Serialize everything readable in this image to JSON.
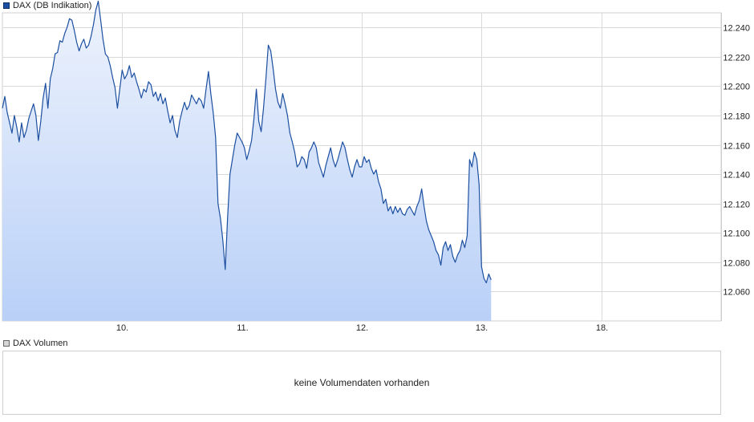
{
  "legend": {
    "price_label": "DAX (DB Indikation)",
    "volume_label": "DAX Volumen"
  },
  "volume": {
    "empty_message": "keine Volumendaten vorhanden"
  },
  "colors": {
    "line": "#1c4fa0",
    "area_top": "#eef3fd",
    "area_bottom": "#b9d0f7",
    "grid": "#d9d9d9",
    "frame": "#cfcfcf"
  },
  "chart_data": {
    "type": "area",
    "series": [
      {
        "name": "DAX (DB Indikation)"
      }
    ],
    "x_ticks": [
      "10.",
      "11.",
      "12.",
      "13.",
      "18."
    ],
    "y_ticks": [
      "12.060",
      "12.080",
      "12.100",
      "12.120",
      "12.140",
      "12.160",
      "12.180",
      "12.200",
      "12.220",
      "12.240"
    ],
    "ylim": [
      12040,
      12250
    ],
    "x_index_range": [
      0,
      6
    ],
    "grid": true,
    "legend_position": "top-left",
    "points": [
      [
        0.0,
        12185
      ],
      [
        0.02,
        12193
      ],
      [
        0.04,
        12182
      ],
      [
        0.06,
        12175
      ],
      [
        0.08,
        12168
      ],
      [
        0.1,
        12180
      ],
      [
        0.12,
        12172
      ],
      [
        0.14,
        12162
      ],
      [
        0.16,
        12175
      ],
      [
        0.18,
        12165
      ],
      [
        0.2,
        12170
      ],
      [
        0.22,
        12178
      ],
      [
        0.24,
        12183
      ],
      [
        0.26,
        12188
      ],
      [
        0.28,
        12180
      ],
      [
        0.3,
        12163
      ],
      [
        0.32,
        12176
      ],
      [
        0.34,
        12192
      ],
      [
        0.36,
        12202
      ],
      [
        0.38,
        12185
      ],
      [
        0.4,
        12205
      ],
      [
        0.42,
        12212
      ],
      [
        0.44,
        12222
      ],
      [
        0.46,
        12223
      ],
      [
        0.48,
        12231
      ],
      [
        0.5,
        12230
      ],
      [
        0.52,
        12236
      ],
      [
        0.54,
        12240
      ],
      [
        0.56,
        12246
      ],
      [
        0.58,
        12245
      ],
      [
        0.6,
        12238
      ],
      [
        0.62,
        12230
      ],
      [
        0.64,
        12224
      ],
      [
        0.66,
        12229
      ],
      [
        0.68,
        12232
      ],
      [
        0.7,
        12226
      ],
      [
        0.72,
        12228
      ],
      [
        0.74,
        12234
      ],
      [
        0.76,
        12242
      ],
      [
        0.78,
        12252
      ],
      [
        0.8,
        12258
      ],
      [
        0.82,
        12245
      ],
      [
        0.84,
        12232
      ],
      [
        0.86,
        12222
      ],
      [
        0.88,
        12220
      ],
      [
        0.9,
        12214
      ],
      [
        0.92,
        12206
      ],
      [
        0.94,
        12199
      ],
      [
        0.96,
        12185
      ],
      [
        0.98,
        12198
      ],
      [
        1.0,
        12211
      ],
      [
        1.02,
        12205
      ],
      [
        1.04,
        12208
      ],
      [
        1.06,
        12214
      ],
      [
        1.08,
        12206
      ],
      [
        1.1,
        12209
      ],
      [
        1.12,
        12203
      ],
      [
        1.14,
        12198
      ],
      [
        1.16,
        12192
      ],
      [
        1.18,
        12198
      ],
      [
        1.2,
        12196
      ],
      [
        1.22,
        12203
      ],
      [
        1.24,
        12201
      ],
      [
        1.26,
        12193
      ],
      [
        1.28,
        12196
      ],
      [
        1.3,
        12190
      ],
      [
        1.32,
        12195
      ],
      [
        1.34,
        12188
      ],
      [
        1.36,
        12192
      ],
      [
        1.38,
        12183
      ],
      [
        1.4,
        12175
      ],
      [
        1.42,
        12180
      ],
      [
        1.44,
        12170
      ],
      [
        1.46,
        12165
      ],
      [
        1.48,
        12176
      ],
      [
        1.5,
        12183
      ],
      [
        1.52,
        12189
      ],
      [
        1.54,
        12184
      ],
      [
        1.56,
        12187
      ],
      [
        1.58,
        12194
      ],
      [
        1.6,
        12191
      ],
      [
        1.62,
        12188
      ],
      [
        1.64,
        12192
      ],
      [
        1.66,
        12190
      ],
      [
        1.68,
        12185
      ],
      [
        1.7,
        12198
      ],
      [
        1.72,
        12210
      ],
      [
        1.74,
        12195
      ],
      [
        1.76,
        12182
      ],
      [
        1.78,
        12165
      ],
      [
        1.8,
        12120
      ],
      [
        1.82,
        12110
      ],
      [
        1.84,
        12095
      ],
      [
        1.86,
        12075
      ],
      [
        1.88,
        12110
      ],
      [
        1.9,
        12140
      ],
      [
        1.92,
        12150
      ],
      [
        1.94,
        12160
      ],
      [
        1.96,
        12168
      ],
      [
        1.98,
        12165
      ],
      [
        2.0,
        12162
      ],
      [
        2.02,
        12158
      ],
      [
        2.04,
        12150
      ],
      [
        2.06,
        12156
      ],
      [
        2.08,
        12163
      ],
      [
        2.1,
        12178
      ],
      [
        2.12,
        12198
      ],
      [
        2.14,
        12176
      ],
      [
        2.16,
        12169
      ],
      [
        2.18,
        12185
      ],
      [
        2.2,
        12205
      ],
      [
        2.22,
        12228
      ],
      [
        2.24,
        12224
      ],
      [
        2.26,
        12212
      ],
      [
        2.28,
        12198
      ],
      [
        2.3,
        12189
      ],
      [
        2.32,
        12185
      ],
      [
        2.34,
        12195
      ],
      [
        2.36,
        12188
      ],
      [
        2.38,
        12180
      ],
      [
        2.4,
        12168
      ],
      [
        2.42,
        12162
      ],
      [
        2.44,
        12155
      ],
      [
        2.46,
        12145
      ],
      [
        2.48,
        12147
      ],
      [
        2.5,
        12152
      ],
      [
        2.52,
        12150
      ],
      [
        2.54,
        12144
      ],
      [
        2.56,
        12155
      ],
      [
        2.58,
        12158
      ],
      [
        2.6,
        12162
      ],
      [
        2.62,
        12158
      ],
      [
        2.64,
        12148
      ],
      [
        2.66,
        12143
      ],
      [
        2.68,
        12138
      ],
      [
        2.7,
        12146
      ],
      [
        2.72,
        12152
      ],
      [
        2.74,
        12158
      ],
      [
        2.76,
        12150
      ],
      [
        2.78,
        12145
      ],
      [
        2.8,
        12150
      ],
      [
        2.82,
        12156
      ],
      [
        2.84,
        12162
      ],
      [
        2.86,
        12158
      ],
      [
        2.88,
        12150
      ],
      [
        2.9,
        12143
      ],
      [
        2.92,
        12138
      ],
      [
        2.94,
        12145
      ],
      [
        2.96,
        12150
      ],
      [
        2.98,
        12145
      ],
      [
        3.0,
        12145
      ],
      [
        3.02,
        12152
      ],
      [
        3.04,
        12148
      ],
      [
        3.06,
        12150
      ],
      [
        3.08,
        12144
      ],
      [
        3.1,
        12140
      ],
      [
        3.12,
        12143
      ],
      [
        3.14,
        12135
      ],
      [
        3.16,
        12130
      ],
      [
        3.18,
        12120
      ],
      [
        3.2,
        12123
      ],
      [
        3.22,
        12115
      ],
      [
        3.24,
        12118
      ],
      [
        3.26,
        12113
      ],
      [
        3.28,
        12118
      ],
      [
        3.3,
        12114
      ],
      [
        3.32,
        12117
      ],
      [
        3.34,
        12113
      ],
      [
        3.36,
        12112
      ],
      [
        3.38,
        12116
      ],
      [
        3.4,
        12118
      ],
      [
        3.42,
        12115
      ],
      [
        3.44,
        12112
      ],
      [
        3.46,
        12118
      ],
      [
        3.48,
        12122
      ],
      [
        3.5,
        12130
      ],
      [
        3.52,
        12118
      ],
      [
        3.54,
        12108
      ],
      [
        3.56,
        12102
      ],
      [
        3.58,
        12098
      ],
      [
        3.6,
        12094
      ],
      [
        3.62,
        12088
      ],
      [
        3.64,
        12085
      ],
      [
        3.66,
        12078
      ],
      [
        3.68,
        12090
      ],
      [
        3.7,
        12094
      ],
      [
        3.72,
        12088
      ],
      [
        3.74,
        12092
      ],
      [
        3.76,
        12084
      ],
      [
        3.78,
        12080
      ],
      [
        3.8,
        12085
      ],
      [
        3.82,
        12088
      ],
      [
        3.84,
        12095
      ],
      [
        3.86,
        12090
      ],
      [
        3.88,
        12098
      ],
      [
        3.9,
        12150
      ],
      [
        3.92,
        12145
      ],
      [
        3.94,
        12155
      ],
      [
        3.96,
        12150
      ],
      [
        3.98,
        12133
      ],
      [
        4.0,
        12077
      ],
      [
        4.02,
        12069
      ],
      [
        4.04,
        12066
      ],
      [
        4.06,
        12072
      ],
      [
        4.08,
        12068
      ]
    ]
  }
}
